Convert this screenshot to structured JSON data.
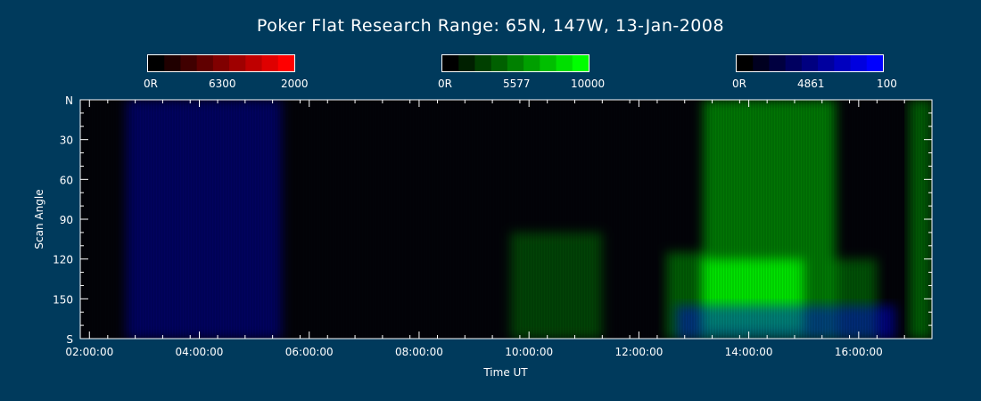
{
  "chart_data": {
    "type": "heatmap",
    "title": "Poker Flat Research Range: 65N, 147W, 13-Jan-2008",
    "xlabel": "Time UT",
    "ylabel": "Scan Angle",
    "x_range": [
      "01:50:00",
      "17:20:00"
    ],
    "x_ticks": [
      "02:00:00",
      "04:00:00",
      "06:00:00",
      "08:00:00",
      "10:00:00",
      "12:00:00",
      "14:00:00",
      "16:00:00"
    ],
    "y_ticks": [
      "N",
      "30",
      "60",
      "90",
      "120",
      "150",
      "S"
    ],
    "y_range": [
      0,
      180
    ],
    "colorbars": [
      {
        "channel": "6300",
        "min_label": "0R",
        "mid_label": "6300",
        "max_label": "2000",
        "color": "#ff0000"
      },
      {
        "channel": "5577",
        "min_label": "0R",
        "mid_label": "5577",
        "max_label": "10000",
        "color": "#00ff00"
      },
      {
        "channel": "4861",
        "min_label": "0R",
        "mid_label": "4861",
        "max_label": "100",
        "color": "#0000ff"
      }
    ],
    "channel_colors": {
      "red": "#ff0000",
      "green": "#00ff00",
      "blue": "#0000ff"
    },
    "regions": [
      {
        "channel": "blue",
        "t_start": "02:40:00",
        "t_end": "05:30:00",
        "angle_start": 0,
        "angle_end": 180,
        "intensity": 0.35
      },
      {
        "channel": "green",
        "t_start": "09:40:00",
        "t_end": "11:20:00",
        "angle_start": 100,
        "angle_end": 180,
        "intensity": 0.25
      },
      {
        "channel": "green",
        "t_start": "12:30:00",
        "t_end": "13:15:00",
        "angle_start": 115,
        "angle_end": 180,
        "intensity": 0.35
      },
      {
        "channel": "green",
        "t_start": "13:10:00",
        "t_end": "15:35:00",
        "angle_start": 0,
        "angle_end": 180,
        "intensity": 0.45
      },
      {
        "channel": "green",
        "t_start": "13:10:00",
        "t_end": "15:00:00",
        "angle_start": 120,
        "angle_end": 175,
        "intensity": 0.8
      },
      {
        "channel": "green",
        "t_start": "15:30:00",
        "t_end": "16:20:00",
        "angle_start": 120,
        "angle_end": 180,
        "intensity": 0.3
      },
      {
        "channel": "blue",
        "t_start": "12:40:00",
        "t_end": "16:40:00",
        "angle_start": 155,
        "angle_end": 180,
        "intensity": 0.45
      },
      {
        "channel": "green",
        "t_start": "16:55:00",
        "t_end": "17:20:00",
        "angle_start": 0,
        "angle_end": 180,
        "intensity": 0.35
      }
    ]
  }
}
